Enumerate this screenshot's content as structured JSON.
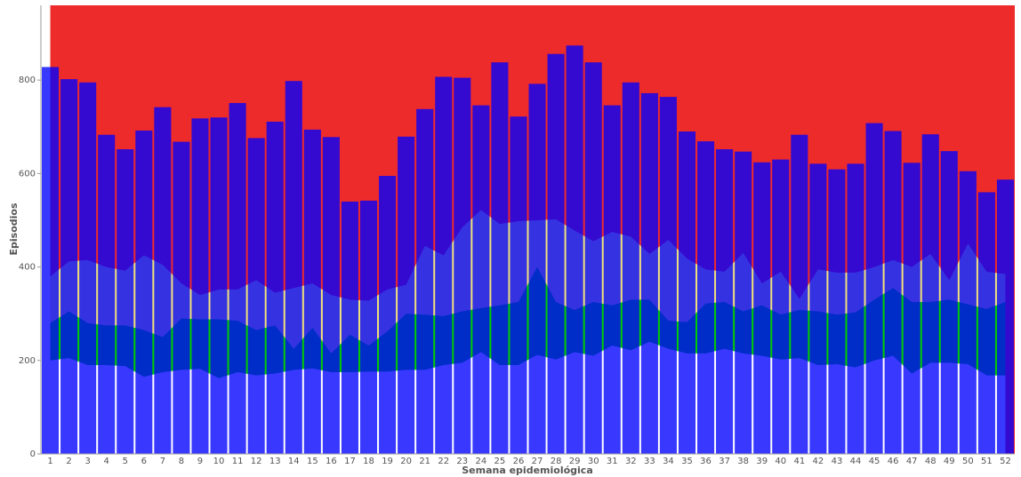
{
  "chart_data": {
    "type": "bar",
    "y_label": "Episodios",
    "x_label": "Semana epidemiológica",
    "categories": [
      "1",
      "2",
      "3",
      "4",
      "5",
      "6",
      "7",
      "8",
      "9",
      "10",
      "11",
      "12",
      "13",
      "14",
      "15",
      "16",
      "17",
      "18",
      "19",
      "20",
      "21",
      "22",
      "23",
      "24",
      "25",
      "26",
      "27",
      "28",
      "29",
      "30",
      "31",
      "32",
      "33",
      "34",
      "35",
      "36",
      "37",
      "38",
      "39",
      "40",
      "41",
      "42",
      "43",
      "44",
      "45",
      "46",
      "47",
      "48",
      "49",
      "50",
      "51",
      "52"
    ],
    "values": [
      828,
      802,
      795,
      683,
      652,
      692,
      742,
      668,
      718,
      720,
      751,
      676,
      711,
      798,
      694,
      678,
      540,
      542,
      595,
      679,
      738,
      807,
      805,
      746,
      838,
      722,
      792,
      856,
      874,
      838,
      746,
      795,
      772,
      764,
      690,
      669,
      652,
      647,
      624,
      630,
      683,
      621,
      609,
      621,
      708,
      691,
      623,
      684,
      648,
      605,
      560,
      587
    ],
    "color": "#0000ff",
    "background": "#ee2b2b",
    "areas": [
      {
        "color": "#f2e27a",
        "values": [
          380,
          412,
          415,
          400,
          392,
          425,
          405,
          365,
          340,
          352,
          352,
          372,
          345,
          355,
          365,
          340,
          330,
          328,
          352,
          362,
          445,
          425,
          485,
          522,
          492,
          498,
          500,
          502,
          478,
          455,
          475,
          465,
          428,
          458,
          418,
          395,
          390,
          430,
          365,
          390,
          332,
          395,
          388,
          388,
          400,
          415,
          400,
          428,
          372,
          450,
          390,
          385
        ]
      },
      {
        "color": "#00cc00",
        "values": [
          280,
          305,
          280,
          275,
          275,
          265,
          250,
          290,
          288,
          288,
          285,
          265,
          275,
          225,
          270,
          215,
          255,
          232,
          262,
          300,
          298,
          295,
          305,
          312,
          318,
          325,
          400,
          325,
          308,
          325,
          318,
          330,
          330,
          285,
          282,
          322,
          325,
          305,
          318,
          298,
          308,
          305,
          298,
          303,
          330,
          355,
          325,
          325,
          330,
          320,
          310,
          325
        ]
      },
      {
        "color": "#ffffff",
        "values": [
          200,
          205,
          190,
          190,
          188,
          165,
          175,
          180,
          182,
          162,
          175,
          168,
          172,
          180,
          183,
          175,
          175,
          176,
          176,
          180,
          180,
          190,
          195,
          218,
          190,
          190,
          212,
          202,
          218,
          210,
          232,
          222,
          240,
          225,
          215,
          215,
          225,
          215,
          210,
          202,
          205,
          190,
          192,
          185,
          200,
          210,
          172,
          195,
          195,
          192,
          168,
          168
        ]
      }
    ],
    "ylim": [
      0,
      960
    ],
    "yticks": [
      0,
      200,
      400,
      600,
      800
    ]
  }
}
